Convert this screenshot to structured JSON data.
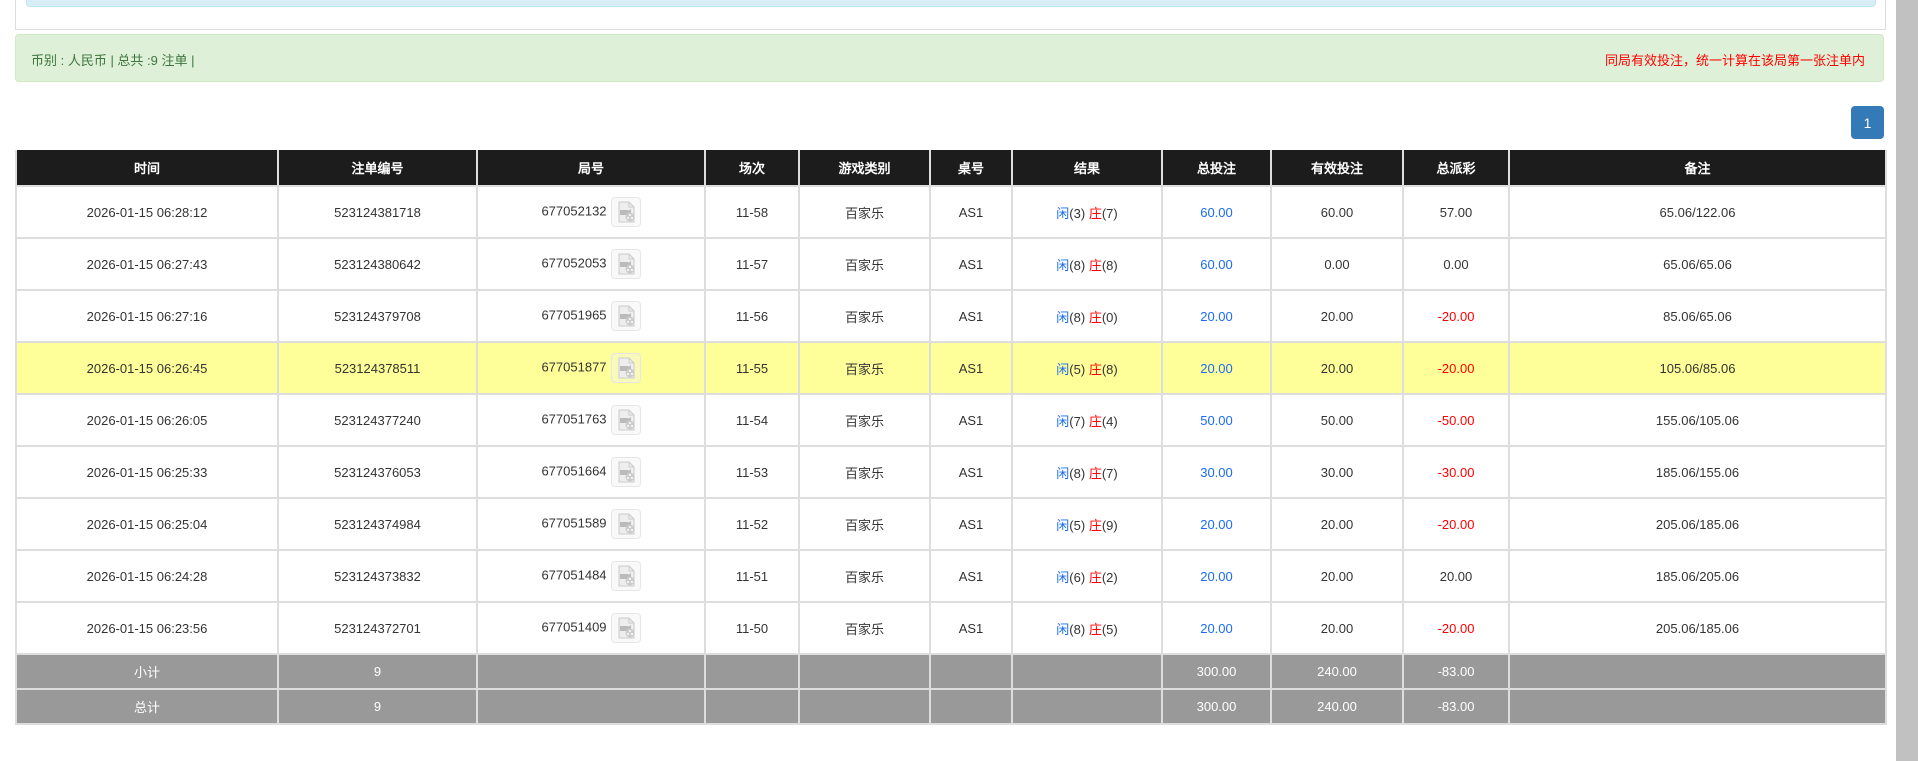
{
  "summary": {
    "left": "币别 : 人民币 | 总共 :9 注单 |",
    "right": "同局有效投注，统一计算在该局第一张注单内"
  },
  "pagination": {
    "current": "1"
  },
  "colors": {
    "header_bg": "#1c1c1c",
    "highlight": "#ffff99",
    "footer_bg": "#999999",
    "bet_blue": "#1a6cf2",
    "negative_red": "#ff0000"
  },
  "columns": [
    "时间",
    "注单编号",
    "局号",
    "场次",
    "游戏类别",
    "桌号",
    "结果",
    "总投注",
    "有效投注",
    "总派彩",
    "备注"
  ],
  "rows": [
    {
      "time": "2026-01-15 06:28:12",
      "order": "523124381718",
      "round": "677052132",
      "shoe": "11-58",
      "game": "百家乐",
      "table": "AS1",
      "p_label": "闲",
      "p": "(3)",
      "b_label": "庄",
      "b": "(7)",
      "bet": "60.00",
      "valid": "60.00",
      "payout": "57.00",
      "negative": false,
      "note": "65.06/122.06",
      "highlight": false
    },
    {
      "time": "2026-01-15 06:27:43",
      "order": "523124380642",
      "round": "677052053",
      "shoe": "11-57",
      "game": "百家乐",
      "table": "AS1",
      "p_label": "闲",
      "p": "(8)",
      "b_label": "庄",
      "b": "(8)",
      "bet": "60.00",
      "valid": "0.00",
      "payout": "0.00",
      "negative": false,
      "note": "65.06/65.06",
      "highlight": false
    },
    {
      "time": "2026-01-15 06:27:16",
      "order": "523124379708",
      "round": "677051965",
      "shoe": "11-56",
      "game": "百家乐",
      "table": "AS1",
      "p_label": "闲",
      "p": "(8)",
      "b_label": "庄",
      "b": "(0)",
      "bet": "20.00",
      "valid": "20.00",
      "payout": "-20.00",
      "negative": true,
      "note": "85.06/65.06",
      "highlight": false
    },
    {
      "time": "2026-01-15 06:26:45",
      "order": "523124378511",
      "round": "677051877",
      "shoe": "11-55",
      "game": "百家乐",
      "table": "AS1",
      "p_label": "闲",
      "p": "(5)",
      "b_label": "庄",
      "b": "(8)",
      "bet": "20.00",
      "valid": "20.00",
      "payout": "-20.00",
      "negative": true,
      "note": "105.06/85.06",
      "highlight": true
    },
    {
      "time": "2026-01-15 06:26:05",
      "order": "523124377240",
      "round": "677051763",
      "shoe": "11-54",
      "game": "百家乐",
      "table": "AS1",
      "p_label": "闲",
      "p": "(7)",
      "b_label": "庄",
      "b": "(4)",
      "bet": "50.00",
      "valid": "50.00",
      "payout": "-50.00",
      "negative": true,
      "note": "155.06/105.06",
      "highlight": false
    },
    {
      "time": "2026-01-15 06:25:33",
      "order": "523124376053",
      "round": "677051664",
      "shoe": "11-53",
      "game": "百家乐",
      "table": "AS1",
      "p_label": "闲",
      "p": "(8)",
      "b_label": "庄",
      "b": "(7)",
      "bet": "30.00",
      "valid": "30.00",
      "payout": "-30.00",
      "negative": true,
      "note": "185.06/155.06",
      "highlight": false
    },
    {
      "time": "2026-01-15 06:25:04",
      "order": "523124374984",
      "round": "677051589",
      "shoe": "11-52",
      "game": "百家乐",
      "table": "AS1",
      "p_label": "闲",
      "p": "(5)",
      "b_label": "庄",
      "b": "(9)",
      "bet": "20.00",
      "valid": "20.00",
      "payout": "-20.00",
      "negative": true,
      "note": "205.06/185.06",
      "highlight": false
    },
    {
      "time": "2026-01-15 06:24:28",
      "order": "523124373832",
      "round": "677051484",
      "shoe": "11-51",
      "game": "百家乐",
      "table": "AS1",
      "p_label": "闲",
      "p": "(6)",
      "b_label": "庄",
      "b": "(2)",
      "bet": "20.00",
      "valid": "20.00",
      "payout": "20.00",
      "negative": false,
      "note": "185.06/205.06",
      "highlight": false
    },
    {
      "time": "2026-01-15 06:23:56",
      "order": "523124372701",
      "round": "677051409",
      "shoe": "11-50",
      "game": "百家乐",
      "table": "AS1",
      "p_label": "闲",
      "p": "(8)",
      "b_label": "庄",
      "b": "(5)",
      "bet": "20.00",
      "valid": "20.00",
      "payout": "-20.00",
      "negative": true,
      "note": "205.06/185.06",
      "highlight": false
    }
  ],
  "footer": [
    {
      "label": "小计",
      "count": "9",
      "bet": "300.00",
      "valid": "240.00",
      "payout": "-83.00"
    },
    {
      "label": "总计",
      "count": "9",
      "bet": "300.00",
      "valid": "240.00",
      "payout": "-83.00"
    }
  ]
}
